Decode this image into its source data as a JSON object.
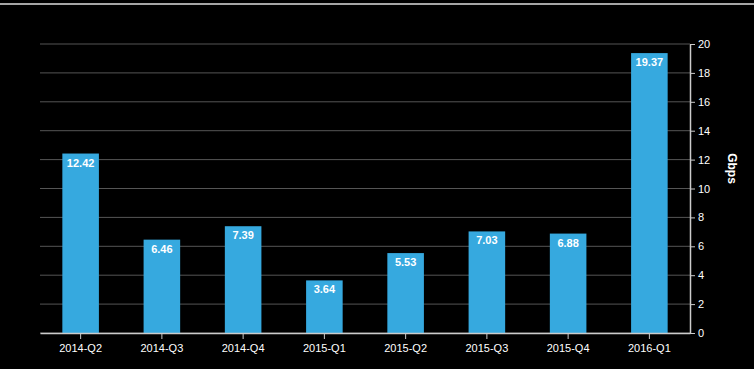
{
  "chart_data": {
    "type": "bar",
    "categories": [
      "2014-Q2",
      "2014-Q3",
      "2014-Q4",
      "2015-Q1",
      "2015-Q2",
      "2015-Q3",
      "2015-Q4",
      "2016-Q1"
    ],
    "values": [
      12.42,
      6.46,
      7.39,
      3.64,
      5.53,
      7.03,
      6.88,
      19.37
    ],
    "color": "#36a9df",
    "y_label": "Gbps",
    "ylim": [
      0,
      20
    ],
    "yticks": [
      0,
      2,
      4,
      6,
      8,
      10,
      12,
      14,
      16,
      18,
      20
    ],
    "grid": true,
    "data_labels": true
  }
}
